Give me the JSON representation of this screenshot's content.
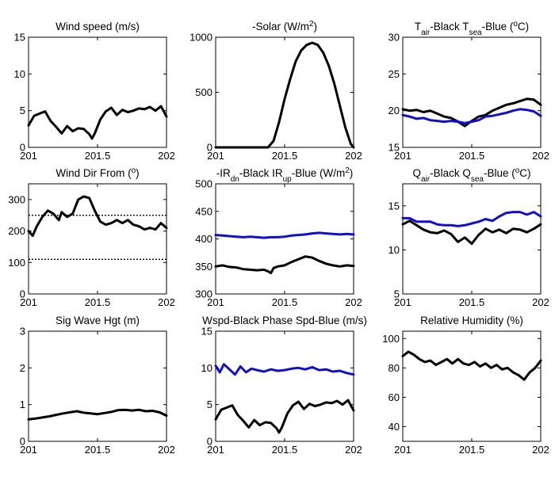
{
  "chart_data": [
    {
      "type": "line",
      "title": [
        "Wind speed (m/s)"
      ],
      "xlim": [
        201,
        202
      ],
      "ylim": [
        0,
        15
      ],
      "xticks": [
        201,
        201.5,
        202
      ],
      "yticks": [
        0,
        5,
        10,
        15
      ],
      "series": [
        {
          "color": "#000000",
          "x": [
            201.0,
            201.04,
            201.08,
            201.12,
            201.16,
            201.2,
            201.24,
            201.28,
            201.32,
            201.36,
            201.4,
            201.44,
            201.46,
            201.48,
            201.52,
            201.56,
            201.6,
            201.64,
            201.68,
            201.72,
            201.76,
            201.8,
            201.84,
            201.88,
            201.92,
            201.96,
            202.0
          ],
          "y": [
            3,
            4.3,
            4.6,
            4.9,
            3.6,
            2.8,
            1.9,
            2.9,
            2.2,
            2.6,
            2.5,
            1.8,
            1.2,
            1.9,
            3.8,
            4.9,
            5.4,
            4.4,
            5.1,
            4.8,
            5.0,
            5.3,
            5.2,
            5.5,
            5.0,
            5.6,
            4.2
          ]
        }
      ]
    },
    {
      "type": "line",
      "title": [
        "-Solar (W/m",
        {
          "sup": "2"
        },
        ")"
      ],
      "xlim": [
        201,
        202
      ],
      "ylim": [
        0,
        1000
      ],
      "xticks": [
        201,
        201.5,
        202
      ],
      "yticks": [
        0,
        500,
        1000
      ],
      "series": [
        {
          "color": "#000000",
          "x": [
            201.0,
            201.1,
            201.2,
            201.3,
            201.38,
            201.42,
            201.46,
            201.5,
            201.54,
            201.58,
            201.62,
            201.66,
            201.7,
            201.74,
            201.78,
            201.82,
            201.86,
            201.9,
            201.94,
            201.98,
            202.0
          ],
          "y": [
            0,
            0,
            0,
            0,
            0,
            60,
            230,
            440,
            620,
            780,
            880,
            930,
            950,
            930,
            860,
            740,
            580,
            380,
            180,
            30,
            0
          ]
        }
      ]
    },
    {
      "type": "line",
      "title": [
        "T",
        {
          "sub": "air"
        },
        "-Black  T",
        {
          "sub": "sea"
        },
        "-Blue (",
        {
          "sup": "o"
        },
        "C)"
      ],
      "xlim": [
        201,
        202
      ],
      "ylim": [
        15,
        30
      ],
      "xticks": [
        201,
        201.5,
        202
      ],
      "yticks": [
        15,
        20,
        25,
        30
      ],
      "series": [
        {
          "color": "#000000",
          "x": [
            201.0,
            201.05,
            201.1,
            201.15,
            201.2,
            201.25,
            201.3,
            201.35,
            201.4,
            201.45,
            201.5,
            201.55,
            201.6,
            201.65,
            201.7,
            201.75,
            201.8,
            201.85,
            201.9,
            201.95,
            202.0
          ],
          "y": [
            20.2,
            20.0,
            20.1,
            19.8,
            20.0,
            19.6,
            19.2,
            19.0,
            18.5,
            17.9,
            18.6,
            19.2,
            19.4,
            20.0,
            20.4,
            20.8,
            21.0,
            21.3,
            21.6,
            21.5,
            20.8
          ]
        },
        {
          "color": "#1010c8",
          "x": [
            201.0,
            201.05,
            201.1,
            201.15,
            201.2,
            201.25,
            201.3,
            201.35,
            201.4,
            201.45,
            201.5,
            201.55,
            201.6,
            201.65,
            201.7,
            201.75,
            201.8,
            201.85,
            201.9,
            201.95,
            202.0
          ],
          "y": [
            19.4,
            19.2,
            18.9,
            19.0,
            18.7,
            18.6,
            18.5,
            18.6,
            18.5,
            18.3,
            18.5,
            18.7,
            19.2,
            19.3,
            19.5,
            19.7,
            20.0,
            20.2,
            20.1,
            19.9,
            19.3
          ]
        }
      ]
    },
    {
      "type": "line",
      "title": [
        "Wind Dir From (",
        {
          "sup": "o"
        },
        ")"
      ],
      "xlim": [
        201,
        202
      ],
      "ylim": [
        0,
        350
      ],
      "xticks": [
        201,
        201.5,
        202
      ],
      "yticks": [
        0,
        100,
        200,
        300
      ],
      "hlines": [
        250,
        110
      ],
      "series": [
        {
          "color": "#000000",
          "x": [
            201.0,
            201.03,
            201.06,
            201.1,
            201.14,
            201.18,
            201.22,
            201.24,
            201.28,
            201.32,
            201.36,
            201.4,
            201.44,
            201.48,
            201.52,
            201.56,
            201.6,
            201.64,
            201.68,
            201.72,
            201.76,
            201.8,
            201.84,
            201.88,
            201.92,
            201.96,
            202.0
          ],
          "y": [
            200,
            185,
            215,
            245,
            265,
            255,
            235,
            260,
            245,
            255,
            300,
            310,
            305,
            265,
            230,
            220,
            225,
            235,
            225,
            235,
            220,
            215,
            205,
            210,
            205,
            225,
            210
          ]
        }
      ]
    },
    {
      "type": "line",
      "title": [
        "-IR",
        {
          "sub": "dn"
        },
        "-Black  IR",
        {
          "sub": "up"
        },
        "-Blue (W/m",
        {
          "sup": "2"
        },
        ")"
      ],
      "xlim": [
        201,
        202
      ],
      "ylim": [
        300,
        500
      ],
      "xticks": [
        201,
        201.5,
        202
      ],
      "yticks": [
        300,
        350,
        400,
        450,
        500
      ],
      "series": [
        {
          "color": "#000000",
          "x": [
            201.0,
            201.05,
            201.1,
            201.15,
            201.2,
            201.25,
            201.3,
            201.35,
            201.38,
            201.4,
            201.42,
            201.45,
            201.5,
            201.55,
            201.6,
            201.65,
            201.7,
            201.75,
            201.8,
            201.85,
            201.9,
            201.95,
            202.0
          ],
          "y": [
            350,
            352,
            349,
            348,
            345,
            344,
            343,
            344,
            341,
            338,
            347,
            350,
            352,
            358,
            363,
            368,
            366,
            360,
            355,
            352,
            350,
            352,
            351
          ]
        },
        {
          "color": "#1010c8",
          "x": [
            201.0,
            201.05,
            201.1,
            201.15,
            201.2,
            201.25,
            201.3,
            201.35,
            201.4,
            201.45,
            201.5,
            201.55,
            201.6,
            201.65,
            201.7,
            201.75,
            201.8,
            201.85,
            201.9,
            201.95,
            202.0
          ],
          "y": [
            407,
            406,
            405,
            404,
            403,
            404,
            403,
            402,
            403,
            403,
            404,
            406,
            407,
            408,
            410,
            411,
            410,
            409,
            408,
            409,
            408
          ]
        }
      ]
    },
    {
      "type": "line",
      "title": [
        "Q",
        {
          "sub": "air"
        },
        "-Black  Q",
        {
          "sub": "sea"
        },
        "-Blue (",
        {
          "sup": "o"
        },
        "C)"
      ],
      "xlim": [
        201,
        202
      ],
      "ylim": [
        5,
        17.5
      ],
      "xticks": [
        201,
        201.5,
        202
      ],
      "yticks": [
        5,
        10,
        15
      ],
      "series": [
        {
          "color": "#000000",
          "x": [
            201.0,
            201.05,
            201.1,
            201.15,
            201.2,
            201.25,
            201.3,
            201.35,
            201.4,
            201.45,
            201.5,
            201.55,
            201.6,
            201.65,
            201.7,
            201.75,
            201.8,
            201.85,
            201.9,
            201.95,
            202.0
          ],
          "y": [
            12.9,
            13.3,
            12.8,
            12.3,
            12.0,
            11.9,
            12.2,
            11.8,
            10.9,
            11.4,
            10.7,
            11.7,
            12.4,
            12.0,
            12.3,
            11.9,
            12.4,
            12.3,
            12.0,
            12.4,
            12.9
          ]
        },
        {
          "color": "#1010c8",
          "x": [
            201.0,
            201.05,
            201.1,
            201.15,
            201.2,
            201.25,
            201.3,
            201.35,
            201.4,
            201.45,
            201.5,
            201.55,
            201.6,
            201.65,
            201.7,
            201.75,
            201.8,
            201.85,
            201.9,
            201.95,
            202.0
          ],
          "y": [
            13.6,
            13.6,
            13.2,
            13.2,
            13.2,
            12.9,
            12.8,
            12.8,
            12.7,
            12.8,
            13.0,
            13.2,
            13.5,
            13.3,
            13.8,
            14.2,
            14.3,
            14.3,
            14.0,
            14.3,
            13.8
          ]
        }
      ]
    },
    {
      "type": "line",
      "title": [
        "Sig Wave Hgt (m)"
      ],
      "xlim": [
        201,
        202
      ],
      "ylim": [
        0,
        3
      ],
      "xticks": [
        201,
        201.5,
        202
      ],
      "yticks": [
        0,
        1,
        2,
        3
      ],
      "series": [
        {
          "color": "#000000",
          "x": [
            201.0,
            201.05,
            201.1,
            201.15,
            201.2,
            201.25,
            201.3,
            201.35,
            201.4,
            201.45,
            201.5,
            201.55,
            201.6,
            201.65,
            201.7,
            201.75,
            201.8,
            201.85,
            201.9,
            201.95,
            202.0
          ],
          "y": [
            0.6,
            0.62,
            0.65,
            0.68,
            0.72,
            0.76,
            0.79,
            0.82,
            0.78,
            0.76,
            0.74,
            0.77,
            0.8,
            0.85,
            0.86,
            0.84,
            0.86,
            0.82,
            0.83,
            0.79,
            0.7
          ]
        }
      ]
    },
    {
      "type": "line",
      "title": [
        "Wspd-Black  Phase Spd-Blue (m/s)"
      ],
      "xlim": [
        201,
        202
      ],
      "ylim": [
        0,
        15
      ],
      "xticks": [
        201,
        201.5,
        202
      ],
      "yticks": [
        0,
        5,
        10,
        15
      ],
      "series": [
        {
          "color": "#000000",
          "x": [
            201.0,
            201.04,
            201.08,
            201.12,
            201.16,
            201.2,
            201.24,
            201.28,
            201.32,
            201.36,
            201.4,
            201.44,
            201.46,
            201.48,
            201.52,
            201.56,
            201.6,
            201.64,
            201.68,
            201.72,
            201.76,
            201.8,
            201.84,
            201.88,
            201.92,
            201.96,
            202.0
          ],
          "y": [
            3,
            4.3,
            4.6,
            4.9,
            3.6,
            2.8,
            1.9,
            2.9,
            2.2,
            2.6,
            2.5,
            1.8,
            1.2,
            1.9,
            3.8,
            4.9,
            5.4,
            4.4,
            5.1,
            4.8,
            5.0,
            5.3,
            5.2,
            5.5,
            5.0,
            5.6,
            4.2
          ]
        },
        {
          "color": "#1010c8",
          "x": [
            201.0,
            201.03,
            201.06,
            201.1,
            201.14,
            201.18,
            201.22,
            201.26,
            201.3,
            201.35,
            201.4,
            201.45,
            201.5,
            201.55,
            201.6,
            201.65,
            201.7,
            201.75,
            201.8,
            201.85,
            201.9,
            201.95,
            202.0
          ],
          "y": [
            10.3,
            9.4,
            10.5,
            9.8,
            9.1,
            10.2,
            9.4,
            9.9,
            9.7,
            9.5,
            9.8,
            9.6,
            9.7,
            9.9,
            10.0,
            9.8,
            10.1,
            9.7,
            9.8,
            9.5,
            9.6,
            9.3,
            9.1
          ]
        }
      ]
    },
    {
      "type": "line",
      "title": [
        "Relative Humidity (%)"
      ],
      "xlim": [
        201,
        202
      ],
      "ylim": [
        30,
        105
      ],
      "xticks": [
        201,
        201.5,
        202
      ],
      "yticks": [
        40,
        60,
        80,
        100
      ],
      "series": [
        {
          "color": "#000000",
          "x": [
            201.0,
            201.04,
            201.08,
            201.12,
            201.16,
            201.2,
            201.24,
            201.28,
            201.32,
            201.36,
            201.4,
            201.44,
            201.48,
            201.52,
            201.56,
            201.6,
            201.64,
            201.68,
            201.72,
            201.76,
            201.8,
            201.84,
            201.88,
            201.92,
            201.96,
            202.0
          ],
          "y": [
            88,
            91,
            89,
            86,
            84,
            85,
            82,
            84,
            86,
            83,
            86,
            83,
            82,
            84,
            81,
            83,
            80,
            82,
            79,
            80,
            77,
            75,
            72,
            77,
            80,
            85
          ]
        }
      ]
    }
  ]
}
